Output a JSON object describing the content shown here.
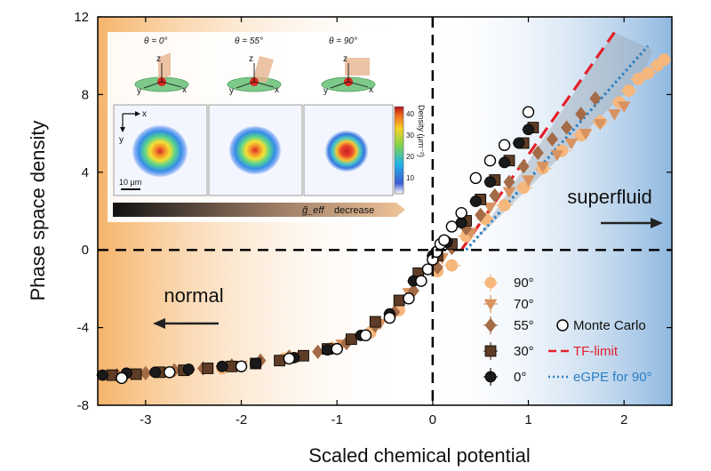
{
  "chart_data": {
    "type": "scatter",
    "xlabel": "Scaled chemical potential",
    "ylabel": "Phase space density",
    "xlim": [
      -3.5,
      2.5
    ],
    "ylim": [
      -8,
      12
    ],
    "xticks": [
      -3,
      -2,
      -1,
      0,
      1,
      2
    ],
    "yticks": [
      -8,
      -4,
      0,
      4,
      8,
      12
    ],
    "region_labels": {
      "normal": "normal",
      "superfluid": "superfluid"
    },
    "colors": {
      "normal_bg": "#f6b46a",
      "superfluid_bg": "#9fc3e4",
      "s90": "#f6b77c",
      "s70": "#d99361",
      "s55": "#a36b46",
      "s30": "#5e3c25",
      "s0": "#1a1a1a",
      "tf": "#e4202a",
      "egpe": "#2b7fc4",
      "band": "#9aa7b4"
    },
    "series": [
      {
        "name": "90°",
        "marker": "circle",
        "x": [
          -2.2,
          -1.55,
          -1.05,
          -0.65,
          -0.35,
          0.05,
          0.2,
          0.35,
          0.55,
          0.75,
          0.95,
          1.15,
          1.35,
          1.55,
          1.75,
          1.95,
          2.05,
          2.15,
          2.25,
          2.35,
          2.42
        ],
        "y": [
          -6.1,
          -5.6,
          -5.05,
          -4.25,
          -3.1,
          -1.1,
          -0.8,
          0.7,
          1.6,
          2.3,
          3.2,
          4.2,
          5.1,
          5.9,
          6.6,
          7.6,
          8.2,
          8.8,
          9.1,
          9.5,
          9.8
        ]
      },
      {
        "name": "70°",
        "marker": "triangle-down",
        "x": [
          -3.2,
          -2.6,
          -2.0,
          -1.4,
          -0.95,
          -0.55,
          -0.25,
          0.1,
          0.4,
          0.6,
          0.8,
          1.0,
          1.15,
          1.3,
          1.45,
          1.6,
          1.75,
          1.9,
          2.0
        ],
        "y": [
          -6.5,
          -6.2,
          -5.95,
          -5.5,
          -4.85,
          -3.8,
          -2.2,
          -0.4,
          0.9,
          2.2,
          3.0,
          3.6,
          4.3,
          4.9,
          5.5,
          6.0,
          6.5,
          7.0,
          7.4
        ]
      },
      {
        "name": "55°",
        "marker": "diamond",
        "x": [
          -3.3,
          -3.0,
          -2.7,
          -2.4,
          -2.1,
          -1.8,
          -1.5,
          -1.2,
          -0.9,
          -0.6,
          -0.4,
          -0.2,
          0.05,
          0.2,
          0.35,
          0.5,
          0.65,
          0.8,
          0.95,
          1.1,
          1.25,
          1.4,
          1.55,
          1.7
        ],
        "y": [
          -6.45,
          -6.35,
          -6.2,
          -6.1,
          -5.95,
          -5.7,
          -5.5,
          -5.25,
          -4.8,
          -3.9,
          -3.2,
          -2.1,
          -0.9,
          0.1,
          1.1,
          1.8,
          2.8,
          3.5,
          4.3,
          5.0,
          5.7,
          6.3,
          7.0,
          7.8
        ]
      },
      {
        "name": "30°",
        "marker": "square",
        "x": [
          -3.35,
          -3.1,
          -2.85,
          -2.6,
          -2.35,
          -2.1,
          -1.85,
          -1.6,
          -1.35,
          -1.1,
          -0.85,
          -0.6,
          -0.35,
          -0.15,
          0.05,
          0.2,
          0.35,
          0.5,
          0.65,
          0.8,
          0.95,
          1.05
        ],
        "y": [
          -6.45,
          -6.4,
          -6.3,
          -6.2,
          -6.1,
          -6.0,
          -5.85,
          -5.7,
          -5.45,
          -5.1,
          -4.6,
          -3.7,
          -2.6,
          -1.2,
          -0.3,
          0.3,
          1.5,
          2.6,
          3.6,
          4.6,
          5.5,
          6.3
        ]
      },
      {
        "name": "0°",
        "marker": "circle",
        "x": [
          -3.45,
          -3.2,
          -2.9,
          -2.55,
          -2.2,
          -1.85,
          -1.45,
          -1.1,
          -0.75,
          -0.45,
          -0.2,
          0.0,
          0.15,
          0.3,
          0.45,
          0.6,
          0.75,
          0.9,
          1.0
        ],
        "y": [
          -6.45,
          -6.35,
          -6.3,
          -6.15,
          -6.0,
          -5.85,
          -5.55,
          -5.15,
          -4.4,
          -3.3,
          -1.6,
          -0.3,
          0.4,
          1.4,
          2.5,
          3.5,
          4.5,
          5.5,
          6.2
        ]
      }
    ],
    "monte_carlo": {
      "name": "Monte Carlo",
      "x": [
        -3.25,
        -2.75,
        -2.0,
        -1.5,
        -1.0,
        -0.7,
        -0.45,
        -0.25,
        -0.12,
        -0.05,
        0.0,
        0.04,
        0.08,
        0.12,
        0.2,
        0.3,
        0.45,
        0.6,
        0.75,
        1.0
      ],
      "y": [
        -6.6,
        -6.3,
        -6.0,
        -5.6,
        -5.1,
        -4.4,
        -3.5,
        -2.5,
        -1.6,
        -1.0,
        -0.5,
        -0.1,
        0.3,
        0.5,
        1.2,
        1.9,
        3.7,
        4.6,
        5.4,
        7.1
      ]
    },
    "tf_limit": {
      "name": "TF-limit",
      "x": [
        0.3,
        1.9
      ],
      "y": [
        0.0,
        11.2
      ]
    },
    "egpe": {
      "name": "eGPE for 90°",
      "x": [
        0.35,
        2.25
      ],
      "y": [
        0.0,
        10.5
      ]
    },
    "band": {
      "x": [
        0.45,
        1.9,
        2.3,
        2.2
      ],
      "y": [
        0.5,
        11.2,
        10.3,
        9.0
      ]
    },
    "legend": {
      "left": [
        "90°",
        "70°",
        "55°",
        "30°",
        "0°"
      ],
      "right": [
        "Monte Carlo",
        "TF-limit",
        "eGPE for 90°"
      ]
    }
  },
  "inset": {
    "angles": [
      "θ = 0°",
      "θ = 55°",
      "θ = 90°"
    ],
    "axis_letters": {
      "x": "x",
      "y": "y",
      "z": "z"
    },
    "scalebar": "10 μm",
    "colorbar_label": "Density (μm⁻²)",
    "colorbar_ticks": [
      40,
      30,
      20,
      10
    ],
    "gradient_label": "g̃_eff",
    "gradient_suffix": "decrease"
  }
}
